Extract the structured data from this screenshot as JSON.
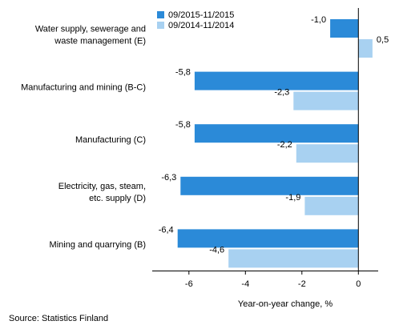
{
  "chart_data": {
    "type": "bar",
    "orientation": "horizontal",
    "categories": [
      "Water supply, sewerage and|waste management (E)",
      "Manufacturing and mining (B-C)",
      "Manufacturing (C)",
      "Electricity, gas, steam,|etc. supply (D)",
      "Mining and quarrying (B)"
    ],
    "series": [
      {
        "name": "09/2015-11/2015",
        "color": "#2b8ad8",
        "values": [
          -1.0,
          -5.8,
          -5.8,
          -6.3,
          -6.4
        ],
        "labels": [
          "-1,0",
          "-5,8",
          "-5,8",
          "-6,3",
          "-6,4"
        ]
      },
      {
        "name": "09/2014-11/2014",
        "color": "#a8d1f1",
        "values": [
          0.5,
          -2.3,
          -2.2,
          -1.9,
          -4.6
        ],
        "labels": [
          "0,5",
          "-2,3",
          "-2,2",
          "-1,9",
          "-4,6"
        ]
      }
    ],
    "xlabel": "Year-on-year change, %",
    "xlim": [
      -7.3,
      0.7
    ],
    "xticks": [
      -6,
      -4,
      -2,
      0
    ],
    "xtick_labels": [
      "-6",
      "-4",
      "-2",
      "0"
    ],
    "legend_position": "top-left",
    "grid": false
  },
  "source": "Source: Statistics Finland"
}
